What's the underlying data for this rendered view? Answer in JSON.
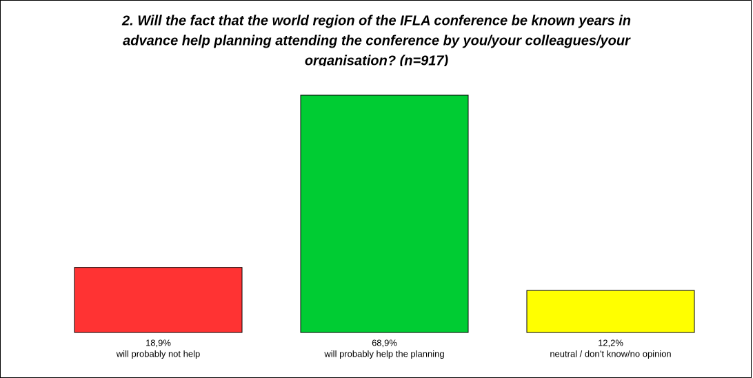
{
  "chart_data": {
    "type": "bar",
    "title": [
      "2. Will the fact that the world region of the IFLA conference be known years in",
      "advance help planning attending the conference by you/your colleagues/your",
      "organisation? (n=917)"
    ],
    "categories": [
      "will probably not help",
      "will probably help the planning",
      "neutral / don’t know/no opinion"
    ],
    "values": [
      18.9,
      68.9,
      12.2
    ],
    "value_labels": [
      "18,9%",
      "68,9%",
      "12,2%"
    ],
    "colors": [
      "#ff3333",
      "#00cc33",
      "#ffff00"
    ]
  }
}
